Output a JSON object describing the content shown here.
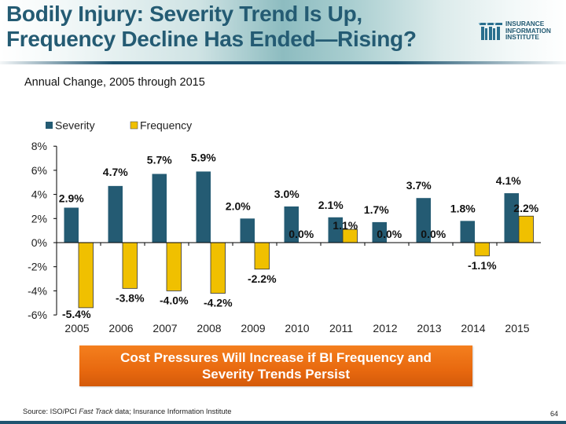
{
  "slide": {
    "title_line1": "Bodily Injury: Severity Trend Is Up,",
    "title_line2": "Frequency Decline Has Ended—Rising?",
    "subtitle": "Annual Change, 2005 through 2015",
    "logo": {
      "line1": "INSURANCE",
      "line2": "INFORMATION",
      "line3": "INSTITUTE"
    },
    "callout_line1": "Cost Pressures Will Increase if BI Frequency and",
    "callout_line2": "Severity Trends Persist",
    "source_prefix": "Source: ISO/PCI ",
    "source_italic": "Fast Track",
    "source_suffix": " data; Insurance Information Institute",
    "page_number": "64"
  },
  "colors": {
    "severity": "#245b73",
    "frequency": "#f0c000",
    "title": "#245b73",
    "callout": "#e8690f"
  },
  "chart_data": {
    "type": "bar",
    "title": "",
    "subtitle": "Annual Change, 2005 through 2015",
    "xlabel": "",
    "ylabel": "",
    "categories": [
      "2005",
      "2006",
      "2007",
      "2008",
      "2009",
      "2010",
      "2011",
      "2012",
      "2013",
      "2014",
      "2015"
    ],
    "series": [
      {
        "name": "Severity",
        "color": "#245b73",
        "values": [
          2.9,
          4.7,
          5.7,
          5.9,
          2.0,
          3.0,
          2.1,
          1.7,
          3.7,
          1.8,
          4.1
        ],
        "labels": [
          "2.9%",
          "4.7%",
          "5.7%",
          "5.9%",
          "2.0%",
          "3.0%",
          "2.1%",
          "1.7%",
          "3.7%",
          "1.8%",
          "4.1%"
        ]
      },
      {
        "name": "Frequency",
        "color": "#f0c000",
        "values": [
          -5.4,
          -3.8,
          -4.0,
          -4.2,
          -2.2,
          0.0,
          1.1,
          0.0,
          0.0,
          -1.1,
          2.2
        ],
        "labels": [
          "-5.4%",
          "-3.8%",
          "-4.0%",
          "-4.2%",
          "-2.2%",
          "0.0%",
          "1.1%",
          "0.0%",
          "0.0%",
          "-1.1%",
          "2.2%"
        ]
      }
    ],
    "ylim": [
      -6,
      8
    ],
    "yticks": [
      8,
      6,
      4,
      2,
      0,
      -2,
      -4,
      -6
    ],
    "ytick_labels": [
      "8%",
      "6%",
      "4%",
      "2%",
      "0%",
      "-2%",
      "-4%",
      "-6%"
    ],
    "grid": false,
    "legend": {
      "placement": "top-left",
      "entries": [
        "Severity",
        "Frequency"
      ]
    }
  }
}
